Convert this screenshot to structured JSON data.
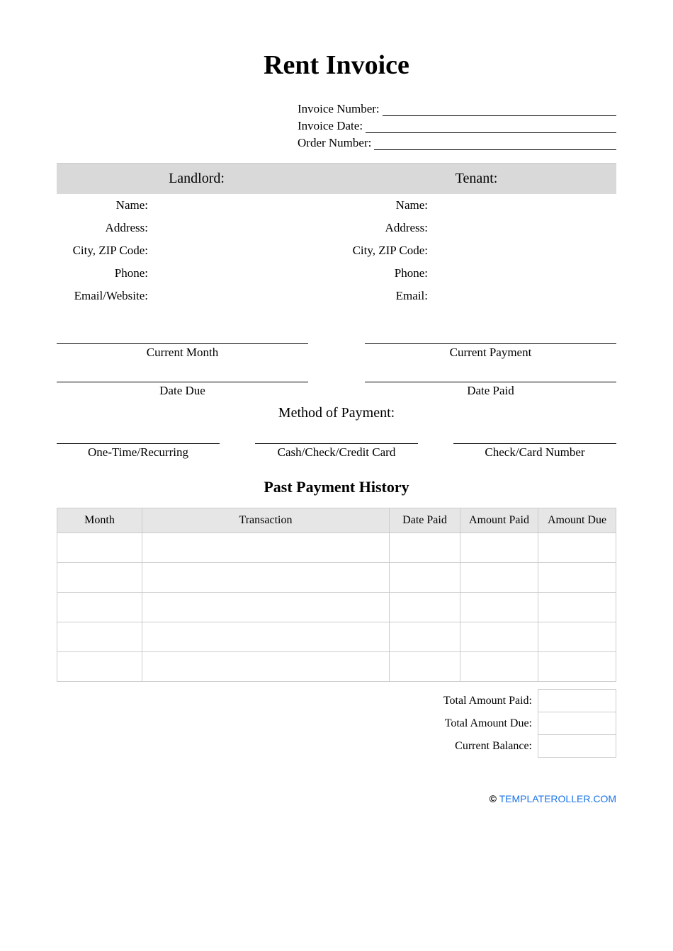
{
  "title": "Rent Invoice",
  "meta": {
    "invoice_number_label": "Invoice Number:",
    "invoice_date_label": "Invoice Date:",
    "order_number_label": "Order Number:"
  },
  "party_headers": {
    "landlord": "Landlord:",
    "tenant": "Tenant:"
  },
  "landlord_fields": {
    "name": "Name:",
    "address": "Address:",
    "city_zip": "City, ZIP Code:",
    "phone": "Phone:",
    "email_website": "Email/Website:"
  },
  "tenant_fields": {
    "name": "Name:",
    "address": "Address:",
    "city_zip": "City, ZIP Code:",
    "phone": "Phone:",
    "email": "Email:"
  },
  "current": {
    "month_label": "Current Month",
    "payment_label": "Current Payment",
    "date_due_label": "Date Due",
    "date_paid_label": "Date Paid"
  },
  "method": {
    "heading": "Method of Payment:",
    "recurring_label": "One-Time/Recurring",
    "cash_label": "Cash/Check/Credit Card",
    "number_label": "Check/Card Number"
  },
  "history": {
    "heading": "Past Payment History",
    "columns": {
      "month": "Month",
      "transaction": "Transaction",
      "date_paid": "Date Paid",
      "amount_paid": "Amount Paid",
      "amount_due": "Amount Due"
    },
    "row_count": 5
  },
  "totals": {
    "total_paid": "Total Amount Paid:",
    "total_due": "Total Amount Due:",
    "current_balance": "Current Balance:"
  },
  "footer": {
    "copyright": "©",
    "link_text": "TEMPLATEROLLER.COM"
  }
}
